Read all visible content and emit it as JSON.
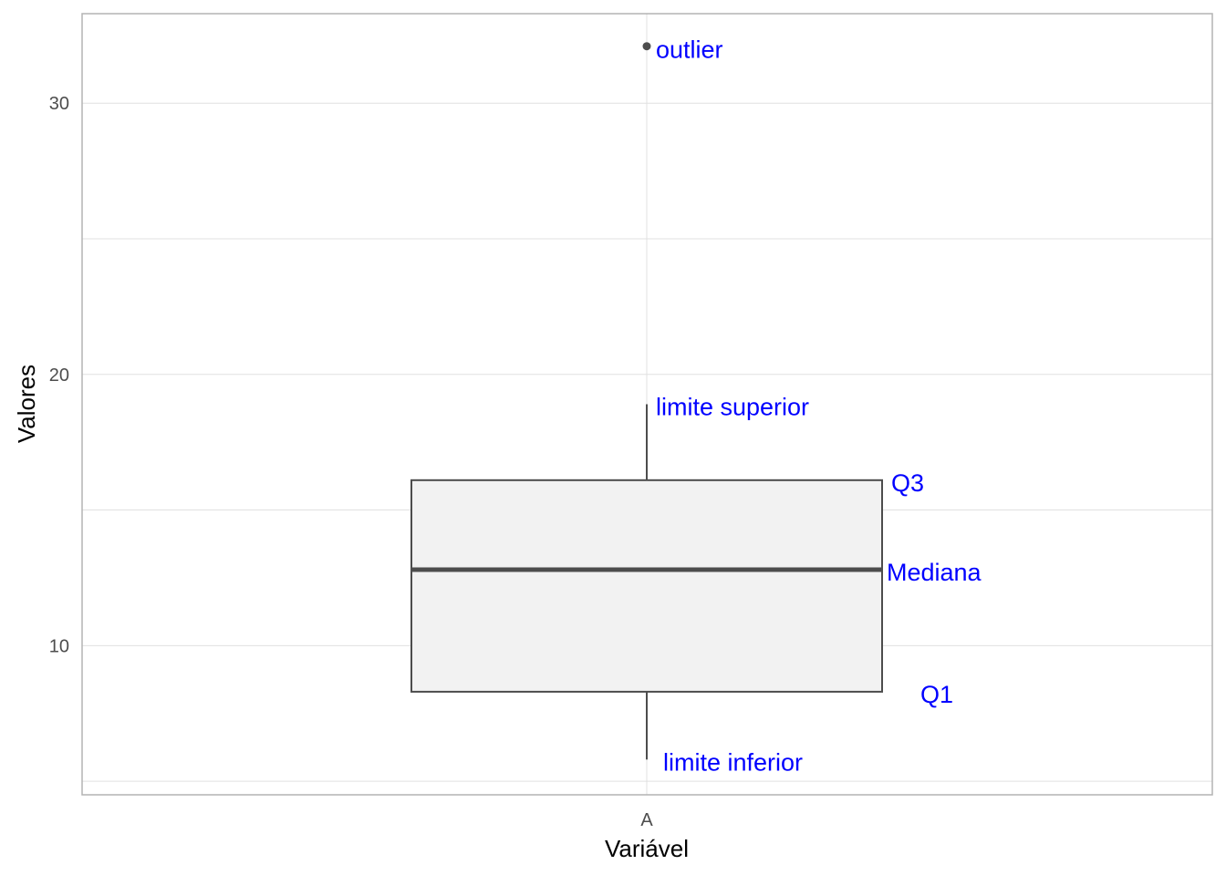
{
  "chart_data": {
    "type": "boxplot",
    "title": "",
    "xlabel": "Variável",
    "ylabel": "Valores",
    "categories": [
      "A"
    ],
    "ylim": [
      4.5,
      33.3
    ],
    "yticks": [
      10,
      20,
      30
    ],
    "grid": true,
    "legend": "none",
    "box": {
      "category": "A",
      "lower_whisker": 5.8,
      "q1": 8.3,
      "median": 12.8,
      "q3": 16.1,
      "upper_whisker": 18.9,
      "outliers": [
        32.1
      ]
    },
    "annotations": [
      {
        "text": "outlier",
        "value": 32.1,
        "anchor": "outlier"
      },
      {
        "text": "limite superior",
        "value": 18.9,
        "anchor": "upper_whisker"
      },
      {
        "text": "Q3",
        "value": 16.1,
        "anchor": "q3"
      },
      {
        "text": "Mediana",
        "value": 12.8,
        "anchor": "median"
      },
      {
        "text": "Q1",
        "value": 8.3,
        "anchor": "q1"
      },
      {
        "text": "limite inferior",
        "value": 5.8,
        "anchor": "lower_whisker"
      }
    ],
    "colors": {
      "annotation": "#0000ff",
      "box_fill": "#f2f2f2",
      "box_stroke": "#4d4d4d",
      "median": "#4d4d4d",
      "outlier": "#4d4d4d",
      "grid": "#e0e0e0",
      "panel_border": "#b3b3b3"
    }
  }
}
